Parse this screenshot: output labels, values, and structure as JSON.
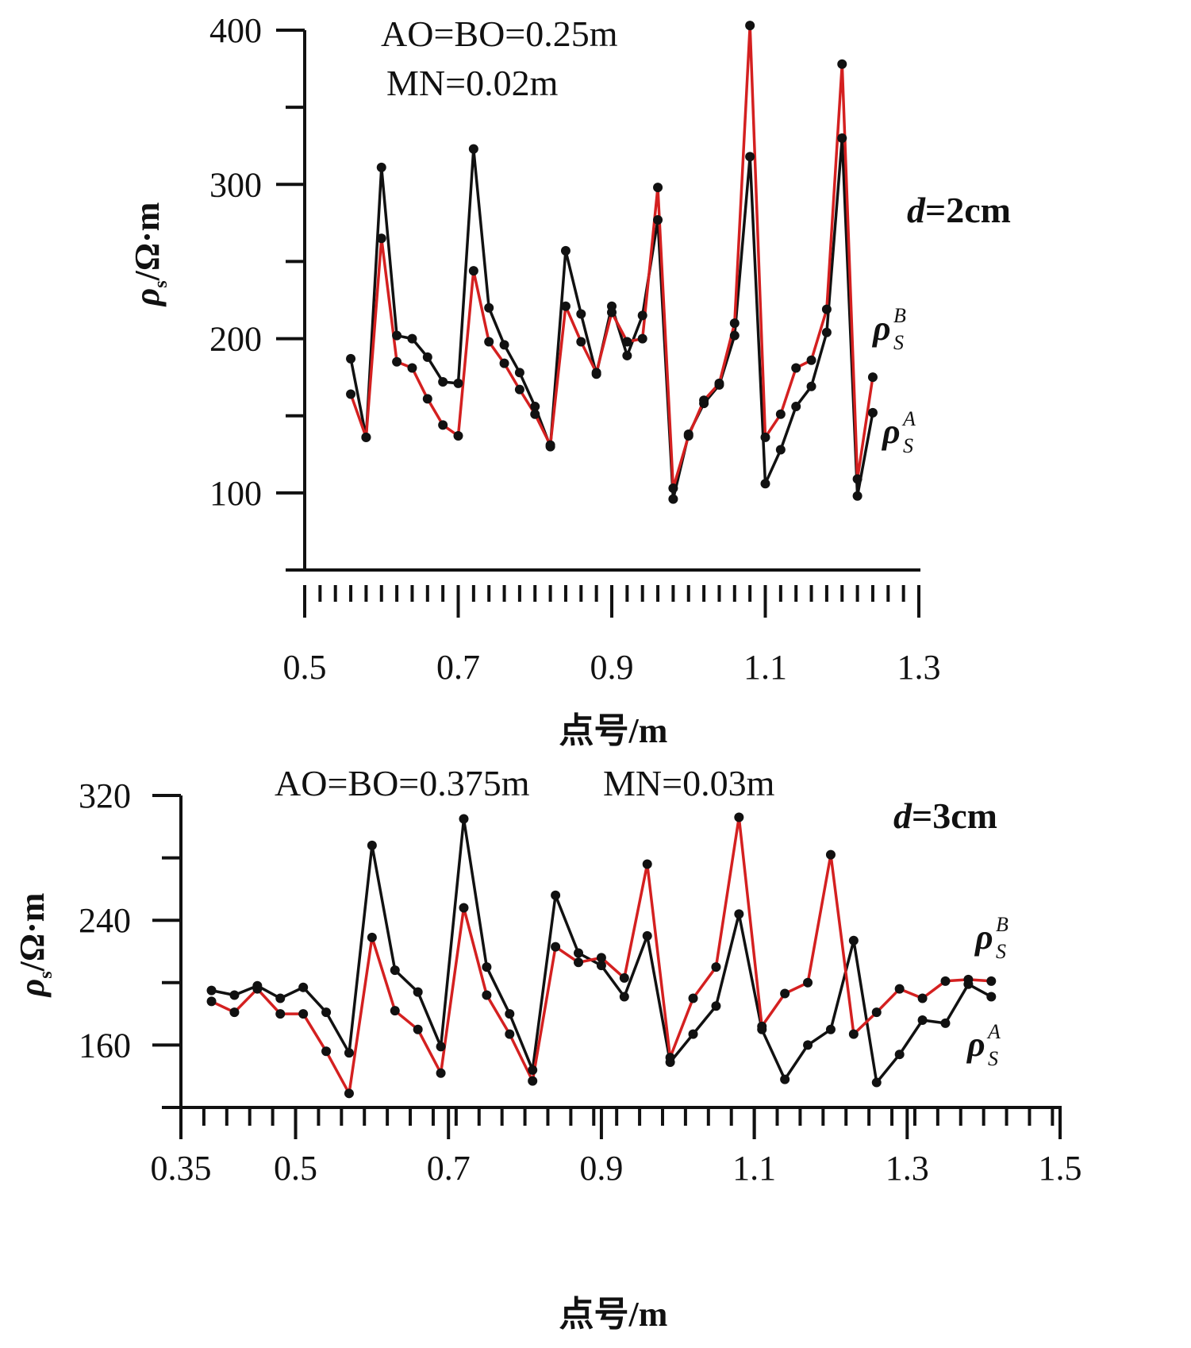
{
  "chart_data": [
    {
      "type": "line",
      "panel": "top",
      "annotations": [
        "AO=BO=0.25m",
        "MN=0.02m"
      ],
      "d_label": {
        "var": "d",
        "rest": "=2cm"
      },
      "xlabel": "点号/m",
      "ylabel": {
        "rho": "ρ",
        "sub": "s",
        "rest": "/Ω·m"
      },
      "xlim": [
        0.5,
        1.3
      ],
      "ylim": [
        50,
        400
      ],
      "xticks": [
        0.5,
        0.7,
        0.9,
        1.1,
        1.3
      ],
      "xtick_labels": [
        "0.5",
        "0.7",
        "0.9",
        "1.1",
        "1.3"
      ],
      "yticks": [
        100,
        200,
        300,
        400
      ],
      "ytick_labels": [
        "100",
        "200",
        "300",
        "400"
      ],
      "x": [
        0.56,
        0.58,
        0.6,
        0.62,
        0.64,
        0.66,
        0.68,
        0.7,
        0.72,
        0.74,
        0.76,
        0.78,
        0.8,
        0.82,
        0.84,
        0.86,
        0.88,
        0.9,
        0.92,
        0.94,
        0.96,
        0.98,
        1.0,
        1.02,
        1.04,
        1.06,
        1.08,
        1.1,
        1.12,
        1.14,
        1.16,
        1.18,
        1.2,
        1.22,
        1.24
      ],
      "series": [
        {
          "name": "ρ_S^A",
          "label_main": "ρ",
          "label_sup": "A",
          "label_sub": "S",
          "color": "#111111",
          "values": [
            187,
            136,
            311,
            202,
            200,
            188,
            172,
            171,
            323,
            220,
            196,
            178,
            156,
            130,
            257,
            216,
            177,
            221,
            189,
            215,
            277,
            96,
            138,
            158,
            170,
            202,
            318,
            106,
            128,
            156,
            169,
            204,
            330,
            98,
            152
          ]
        },
        {
          "name": "ρ_S^B",
          "label_main": "ρ",
          "label_sup": "B",
          "label_sub": "S",
          "color": "#d42020",
          "values": [
            164,
            136,
            265,
            185,
            181,
            161,
            144,
            137,
            244,
            198,
            184,
            167,
            151,
            131,
            221,
            198,
            178,
            217,
            198,
            200,
            298,
            103,
            137,
            160,
            171,
            210,
            403,
            136,
            151,
            181,
            186,
            219,
            378,
            109,
            175
          ]
        }
      ]
    },
    {
      "type": "line",
      "panel": "bottom",
      "annotations": [
        "AO=BO=0.375m",
        "MN=0.03m"
      ],
      "d_label": {
        "var": "d",
        "rest": "=3cm"
      },
      "xlabel": "点号/m",
      "ylabel": {
        "rho": "ρ",
        "sub": "s",
        "rest": "/Ω·m"
      },
      "xlim": [
        0.35,
        1.5
      ],
      "ylim": [
        120,
        320
      ],
      "xticks": [
        0.35,
        0.5,
        0.7,
        0.9,
        1.1,
        1.3,
        1.5
      ],
      "xtick_labels": [
        "0.35",
        "0.5",
        "0.7",
        "0.9",
        "1.1",
        "1.3",
        "1.5"
      ],
      "yticks": [
        160,
        240,
        320
      ],
      "ytick_labels": [
        "160",
        "240",
        "320"
      ],
      "x": [
        0.39,
        0.42,
        0.45,
        0.48,
        0.51,
        0.54,
        0.57,
        0.6,
        0.63,
        0.66,
        0.69,
        0.72,
        0.75,
        0.78,
        0.81,
        0.84,
        0.87,
        0.9,
        0.93,
        0.96,
        0.99,
        1.02,
        1.05,
        1.08,
        1.11,
        1.14,
        1.17,
        1.2,
        1.23,
        1.26,
        1.29,
        1.32,
        1.35,
        1.38,
        1.41
      ],
      "series": [
        {
          "name": "ρ_S^A",
          "label_main": "ρ",
          "label_sup": "A",
          "label_sub": "S",
          "color": "#111111",
          "values": [
            195,
            192,
            198,
            190,
            197,
            181,
            155,
            288,
            208,
            194,
            159,
            305,
            210,
            180,
            144,
            256,
            219,
            211,
            191,
            230,
            149,
            167,
            185,
            244,
            170,
            138,
            160,
            170,
            227,
            136,
            154,
            176,
            174,
            199,
            191
          ]
        },
        {
          "name": "ρ_S^B",
          "label_main": "ρ",
          "label_sup": "B",
          "label_sub": "S",
          "color": "#d42020",
          "values": [
            188,
            181,
            196,
            180,
            180,
            156,
            129,
            229,
            182,
            170,
            142,
            248,
            192,
            167,
            137,
            223,
            213,
            216,
            203,
            276,
            152,
            190,
            210,
            306,
            172,
            193,
            200,
            282,
            167,
            181,
            196,
            190,
            201,
            202,
            201
          ]
        }
      ]
    }
  ]
}
